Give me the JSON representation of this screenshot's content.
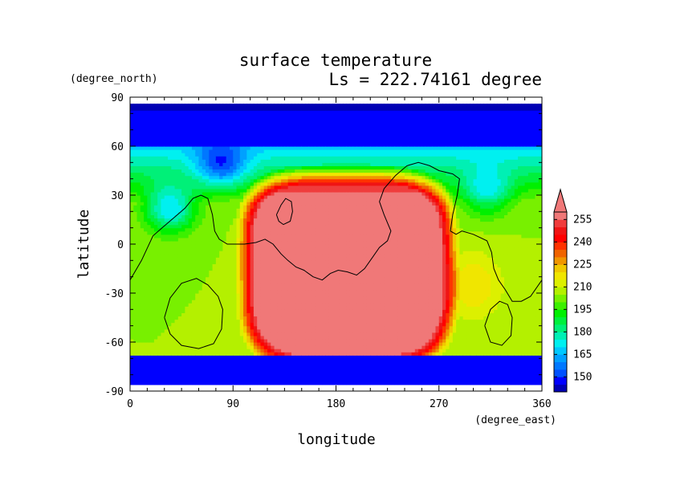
{
  "chart_data": {
    "type": "heatmap",
    "title": "surface temperature",
    "subtitle": "Ls = 222.74161 degree",
    "xlabel": "longitude",
    "ylabel": "latitude",
    "x_units": "(degree_east)",
    "y_units": "(degree_north)",
    "xlim": [
      0,
      360
    ],
    "ylim": [
      -90,
      90
    ],
    "x_ticks": [
      0,
      90,
      180,
      270,
      360
    ],
    "y_ticks": [
      90,
      60,
      30,
      0,
      -30,
      -60,
      -90
    ],
    "colorbar": {
      "levels": [
        140,
        145,
        150,
        155,
        160,
        165,
        170,
        175,
        180,
        185,
        190,
        195,
        200,
        205,
        210,
        215,
        220,
        225,
        230,
        235,
        240,
        245,
        250,
        255,
        260
      ],
      "tick_labels": [
        150,
        165,
        180,
        195,
        210,
        225,
        240,
        255
      ],
      "colors": [
        "#0000b4",
        "#0000ff",
        "#0050ff",
        "#0078ff",
        "#00a0ff",
        "#00c8ff",
        "#00f0f0",
        "#00f0b4",
        "#00f078",
        "#00f03c",
        "#00f000",
        "#3cf000",
        "#78f000",
        "#b4f000",
        "#dcf000",
        "#f0e600",
        "#f0c800",
        "#f09600",
        "#f06400",
        "#ff3200",
        "#ff0000",
        "#f01414",
        "#f03c3c",
        "#f07878"
      ],
      "extend": "max"
    },
    "field": {
      "south_polar_cap_max_lat": -68,
      "north_polar_cap_min_lat": 60,
      "hot_region": {
        "lon_center": 190,
        "lat_center": -15,
        "lon_halfwidth": 80,
        "lat_halfwidth": 52,
        "peak_temp": 262
      },
      "ambient_temp": 205,
      "hot_edge_cool_cells": [
        {
          "lon": 35,
          "lat": 22,
          "temp": 170
        },
        {
          "lon": 312,
          "lat": 32,
          "temp": 180
        },
        {
          "lon": 80,
          "lat": 48,
          "temp": 175
        }
      ],
      "warm_cells": [
        {
          "lon": 300,
          "lat": -25,
          "temp": 220
        },
        {
          "lon": 140,
          "lat": 5,
          "temp": 214
        }
      ]
    },
    "contours": [
      {
        "name": "outline-main",
        "points": [
          [
            0,
            -22
          ],
          [
            10,
            -10
          ],
          [
            20,
            5
          ],
          [
            28,
            10
          ],
          [
            38,
            16
          ],
          [
            48,
            22
          ],
          [
            55,
            28
          ],
          [
            62,
            30
          ],
          [
            68,
            28
          ],
          [
            72,
            18
          ],
          [
            74,
            8
          ],
          [
            78,
            3
          ],
          [
            85,
            0
          ],
          [
            100,
            0
          ],
          [
            110,
            1
          ],
          [
            118,
            3
          ],
          [
            125,
            0
          ],
          [
            132,
            -6
          ],
          [
            138,
            -10
          ],
          [
            145,
            -14
          ],
          [
            152,
            -16
          ],
          [
            160,
            -20
          ],
          [
            168,
            -22
          ],
          [
            175,
            -18
          ],
          [
            182,
            -16
          ],
          [
            190,
            -17
          ],
          [
            198,
            -19
          ],
          [
            205,
            -15
          ],
          [
            212,
            -8
          ],
          [
            218,
            -2
          ],
          [
            225,
            2
          ],
          [
            228,
            8
          ],
          [
            222,
            18
          ],
          [
            218,
            26
          ],
          [
            222,
            34
          ],
          [
            232,
            42
          ],
          [
            242,
            48
          ],
          [
            252,
            50
          ],
          [
            262,
            48
          ],
          [
            270,
            45
          ],
          [
            282,
            43
          ],
          [
            288,
            40
          ],
          [
            286,
            30
          ],
          [
            282,
            18
          ],
          [
            280,
            8
          ],
          [
            285,
            6
          ],
          [
            290,
            8
          ],
          [
            300,
            6
          ],
          [
            312,
            2
          ],
          [
            316,
            -5
          ],
          [
            318,
            -15
          ],
          [
            322,
            -22
          ],
          [
            328,
            -28
          ],
          [
            334,
            -35
          ],
          [
            342,
            -35
          ],
          [
            350,
            -32
          ],
          [
            360,
            -22
          ]
        ]
      },
      {
        "name": "island-small",
        "points": [
          [
            128,
            18
          ],
          [
            132,
            24
          ],
          [
            136,
            28
          ],
          [
            141,
            26
          ],
          [
            142,
            20
          ],
          [
            140,
            14
          ],
          [
            134,
            12
          ],
          [
            130,
            14
          ],
          [
            128,
            18
          ]
        ]
      },
      {
        "name": "island-west",
        "points": [
          [
            30,
            -45
          ],
          [
            35,
            -33
          ],
          [
            45,
            -24
          ],
          [
            58,
            -21
          ],
          [
            68,
            -25
          ],
          [
            77,
            -32
          ],
          [
            81,
            -40
          ],
          [
            80,
            -52
          ],
          [
            73,
            -61
          ],
          [
            60,
            -64
          ],
          [
            45,
            -62
          ],
          [
            35,
            -55
          ],
          [
            30,
            -45
          ]
        ]
      },
      {
        "name": "island-east",
        "points": [
          [
            310,
            -50
          ],
          [
            315,
            -40
          ],
          [
            323,
            -35
          ],
          [
            330,
            -37
          ],
          [
            334,
            -45
          ],
          [
            333,
            -56
          ],
          [
            325,
            -62
          ],
          [
            315,
            -60
          ],
          [
            310,
            -50
          ]
        ]
      }
    ]
  }
}
